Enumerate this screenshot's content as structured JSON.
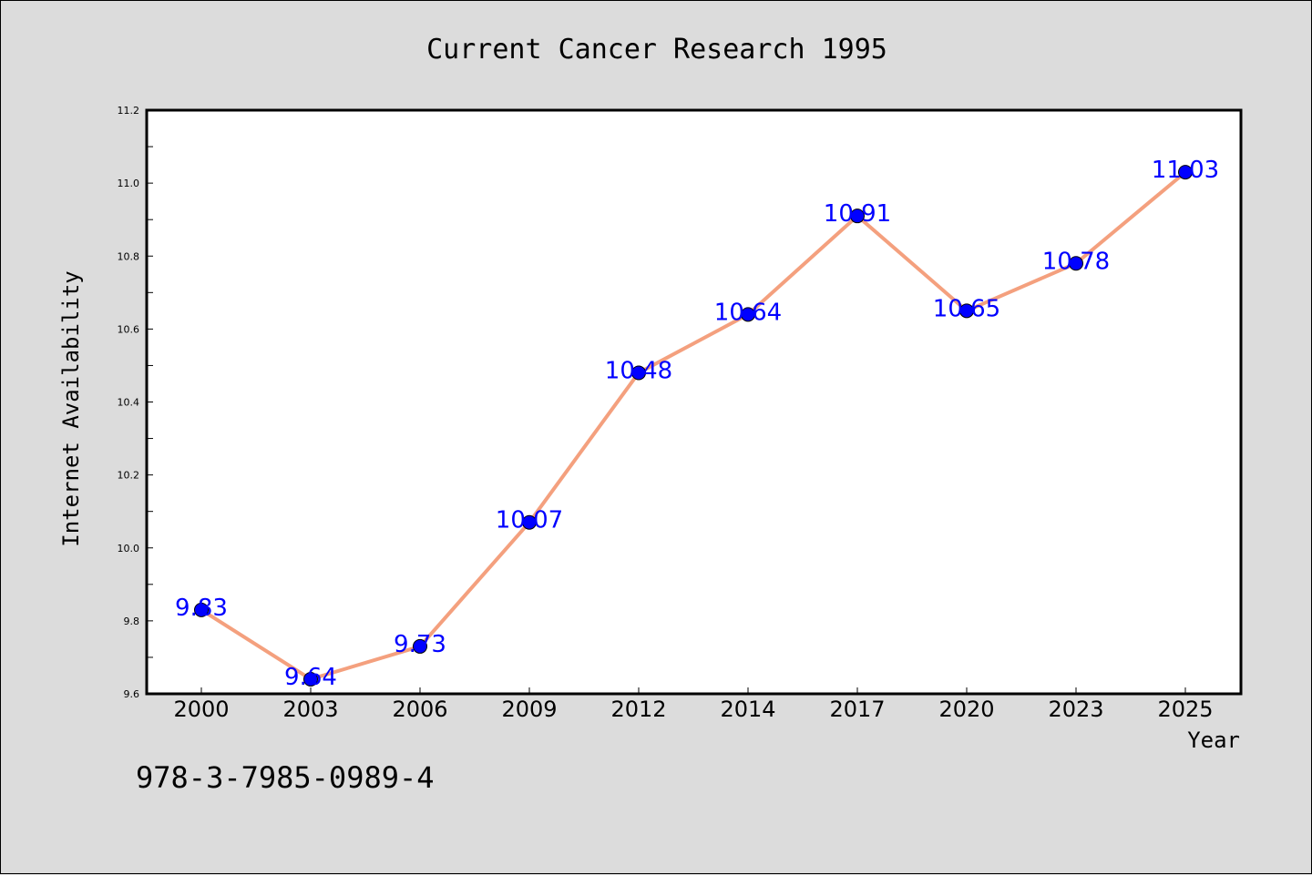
{
  "chart_data": {
    "type": "line",
    "title": "Current Cancer Research 1995",
    "xlabel": "Year",
    "ylabel": "Internet Availability",
    "categories": [
      "2000",
      "2003",
      "2006",
      "2009",
      "2012",
      "2014",
      "2017",
      "2020",
      "2023",
      "2025"
    ],
    "series": [
      {
        "values": [
          9.83,
          9.64,
          9.73,
          10.07,
          10.48,
          10.64,
          10.91,
          10.65,
          10.78,
          11.03
        ],
        "data_labels": [
          "9.83",
          "9.64",
          "9.73",
          "10.07",
          "10.48",
          "10.64",
          "10.91",
          "10.65",
          "10.78",
          "11.03"
        ]
      }
    ],
    "ylim": [
      9.6,
      11.2
    ],
    "yticks": [
      "9.6",
      "9.8",
      "10.0",
      "10.2",
      "10.4",
      "10.6",
      "10.8",
      "11.0",
      "11.2"
    ],
    "grid": false,
    "colors": {
      "line": "#f4a07e",
      "marker": "#0000ff",
      "marker_edge": "#000000",
      "data_label": "#0000ff",
      "background": "#dcdcdc",
      "plot_background": "#ffffff"
    }
  },
  "caption": "978-3-7985-0989-4"
}
